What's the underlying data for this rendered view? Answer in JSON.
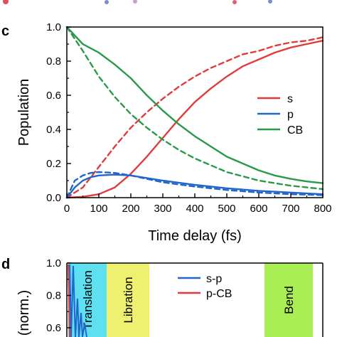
{
  "top_strip": {
    "colors": [
      "#e05060",
      "#7a8bd0",
      "#c8a0d0",
      "#e06070"
    ]
  },
  "chart_data": [
    {
      "panel": "c",
      "type": "line",
      "xlabel": "Time delay (fs)",
      "ylabel": "Population",
      "xlim": [
        0,
        800
      ],
      "ylim": [
        0,
        1.0
      ],
      "xticks": [
        "0",
        "100",
        "200",
        "300",
        "400",
        "500",
        "600",
        "700",
        "800"
      ],
      "yticks": [
        "0.0",
        "0.2",
        "0.4",
        "0.6",
        "0.8",
        "1.0"
      ],
      "legend_position": "right",
      "series": [
        {
          "name": "s",
          "color": "#e03c3c",
          "style": "solid",
          "x": [
            0,
            50,
            100,
            150,
            200,
            250,
            300,
            350,
            400,
            450,
            500,
            550,
            600,
            650,
            700,
            750,
            800
          ],
          "y": [
            0.0,
            0.005,
            0.02,
            0.06,
            0.14,
            0.24,
            0.35,
            0.46,
            0.56,
            0.64,
            0.71,
            0.77,
            0.81,
            0.85,
            0.88,
            0.9,
            0.92
          ]
        },
        {
          "name": "",
          "color": "#e03c3c",
          "style": "dashed",
          "x": [
            0,
            50,
            100,
            150,
            200,
            250,
            300,
            350,
            400,
            450,
            500,
            550,
            600,
            650,
            700,
            750,
            800
          ],
          "y": [
            0.0,
            0.06,
            0.18,
            0.3,
            0.41,
            0.5,
            0.58,
            0.65,
            0.71,
            0.76,
            0.8,
            0.84,
            0.86,
            0.89,
            0.91,
            0.92,
            0.94
          ]
        },
        {
          "name": "p",
          "color": "#2266cc",
          "style": "solid",
          "x": [
            0,
            25,
            50,
            75,
            100,
            150,
            200,
            250,
            300,
            400,
            500,
            600,
            700,
            800
          ],
          "y": [
            0.0,
            0.06,
            0.1,
            0.12,
            0.13,
            0.135,
            0.13,
            0.115,
            0.1,
            0.075,
            0.055,
            0.04,
            0.03,
            0.02
          ]
        },
        {
          "name": "",
          "color": "#2266cc",
          "style": "dashed",
          "x": [
            0,
            25,
            50,
            75,
            100,
            150,
            200,
            250,
            300,
            400,
            500,
            600,
            700,
            800
          ],
          "y": [
            0.0,
            0.1,
            0.13,
            0.145,
            0.15,
            0.145,
            0.13,
            0.11,
            0.09,
            0.065,
            0.045,
            0.03,
            0.02,
            0.015
          ]
        },
        {
          "name": "CB",
          "color": "#2a9a4a",
          "style": "solid",
          "x": [
            0,
            25,
            50,
            100,
            150,
            200,
            250,
            300,
            350,
            400,
            450,
            500,
            550,
            600,
            650,
            700,
            750,
            800
          ],
          "y": [
            1.0,
            0.95,
            0.9,
            0.85,
            0.78,
            0.7,
            0.6,
            0.51,
            0.43,
            0.36,
            0.3,
            0.24,
            0.2,
            0.16,
            0.13,
            0.11,
            0.095,
            0.085
          ]
        },
        {
          "name": "",
          "color": "#2a9a4a",
          "style": "dashed",
          "x": [
            0,
            50,
            100,
            150,
            200,
            250,
            300,
            350,
            400,
            450,
            500,
            550,
            600,
            650,
            700,
            750,
            800
          ],
          "y": [
            1.0,
            0.86,
            0.71,
            0.59,
            0.49,
            0.41,
            0.34,
            0.28,
            0.23,
            0.19,
            0.15,
            0.125,
            0.1,
            0.085,
            0.07,
            0.06,
            0.05
          ]
        }
      ]
    },
    {
      "panel": "d",
      "type": "line",
      "ylabel": "(norm.)",
      "ylim_visible": [
        0.6,
        1.0
      ],
      "yticks": [
        "0.6",
        "0.8",
        "1.0"
      ],
      "bands": [
        {
          "label": "Translation",
          "color": "#5ee0f0"
        },
        {
          "label": "Libration",
          "color": "#f0f070"
        },
        {
          "label": "Bend",
          "color": "#aaee55"
        }
      ],
      "legend": [
        {
          "name": "s-p",
          "color": "#2266cc"
        },
        {
          "name": "p-CB",
          "color": "#e03c3c"
        }
      ]
    }
  ]
}
